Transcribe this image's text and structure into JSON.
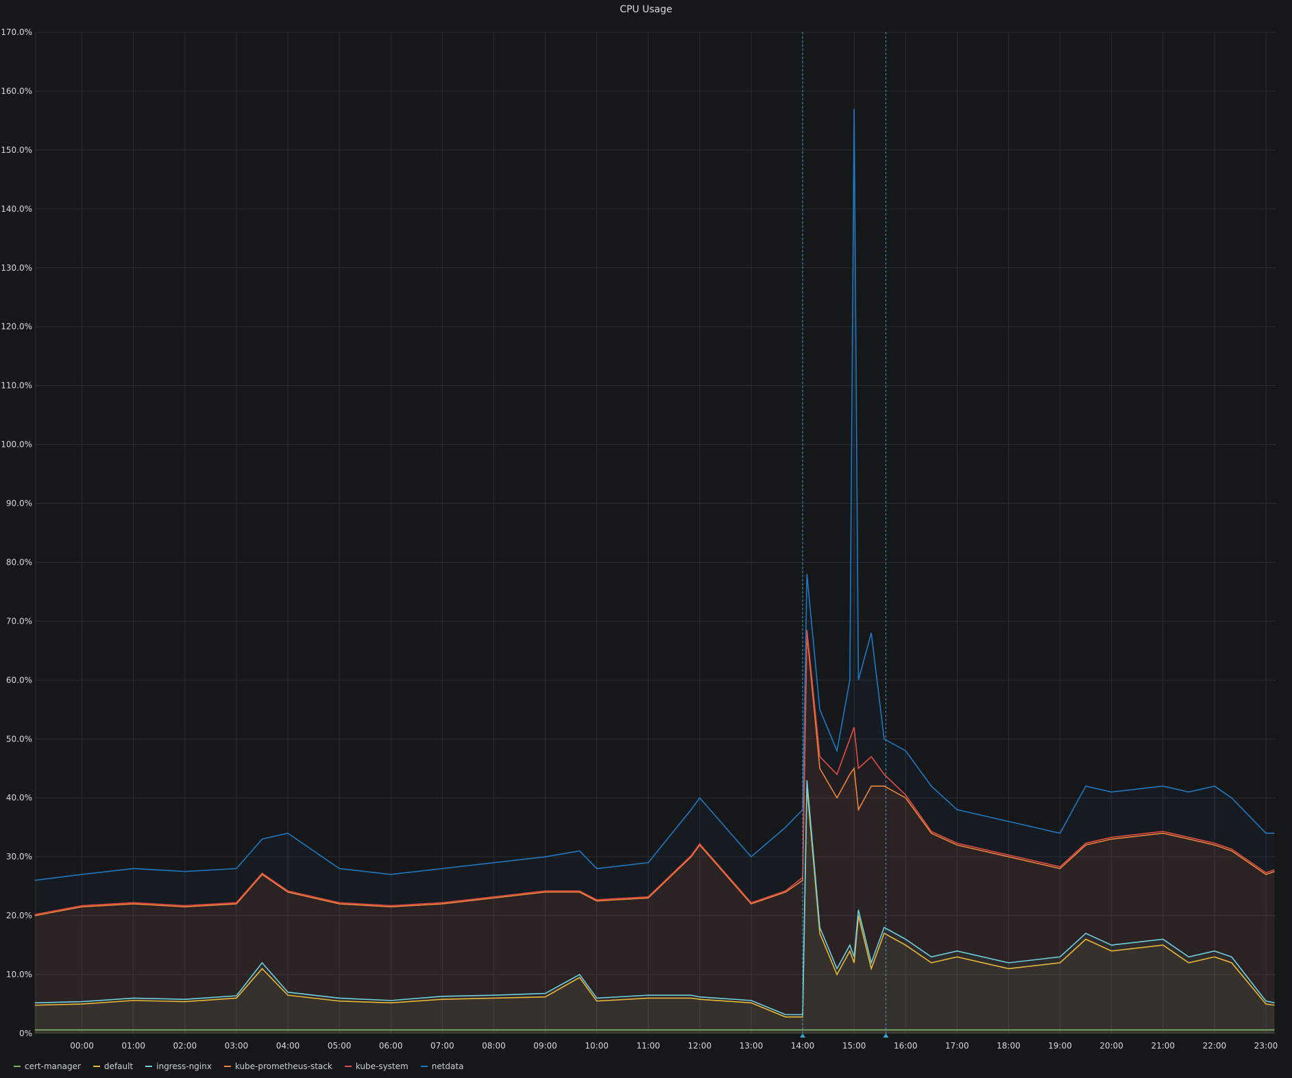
{
  "panel": {
    "title": "CPU Usage"
  },
  "legend": [
    {
      "label": "cert-manager",
      "color": "#7eb26d"
    },
    {
      "label": "default",
      "color": "#eab839"
    },
    {
      "label": "ingress-nginx",
      "color": "#6ed0e0"
    },
    {
      "label": "kube-prometheus-stack",
      "color": "#ef843c"
    },
    {
      "label": "kube-system",
      "color": "#e24d42"
    },
    {
      "label": "netdata",
      "color": "#1f78c1"
    }
  ],
  "chart_data": {
    "type": "area",
    "title": "CPU Usage",
    "stacked": true,
    "xlabel": "",
    "ylabel": "",
    "x_ticks": [
      "00:00",
      "01:00",
      "02:00",
      "03:00",
      "04:00",
      "05:00",
      "06:00",
      "07:00",
      "08:00",
      "09:00",
      "10:00",
      "11:00",
      "12:00",
      "13:00",
      "14:00",
      "15:00",
      "16:00",
      "17:00",
      "18:00",
      "19:00",
      "20:00",
      "21:00",
      "22:00",
      "23:00"
    ],
    "x_range_hours": [
      -0.9,
      23.2
    ],
    "y_ticks": [
      "0%",
      "10.0%",
      "20.0%",
      "30.0%",
      "40.0%",
      "50.0%",
      "60.0%",
      "70.0%",
      "80.0%",
      "90.0%",
      "100.0%",
      "110.0%",
      "120.0%",
      "130.0%",
      "140.0%",
      "150.0%",
      "160.0%",
      "170.0%"
    ],
    "ylim": [
      0,
      170
    ],
    "grid": true,
    "legend_position": "bottom-left",
    "annotations": [
      {
        "x": "14:00"
      },
      {
        "x": "15:37"
      }
    ],
    "x": [
      "-0:55",
      "0:00",
      "1:00",
      "2:00",
      "3:00",
      "3:30",
      "4:00",
      "5:00",
      "6:00",
      "7:00",
      "8:00",
      "9:00",
      "9:40",
      "10:00",
      "11:00",
      "11:50",
      "12:00",
      "13:00",
      "13:40",
      "14:00",
      "14:05",
      "14:20",
      "14:40",
      "14:55",
      "15:00",
      "15:05",
      "15:20",
      "15:35",
      "16:00",
      "16:30",
      "17:00",
      "18:00",
      "19:00",
      "19:30",
      "20:00",
      "21:00",
      "21:30",
      "22:00",
      "22:20",
      "23:00",
      "23:10"
    ],
    "series": [
      {
        "name": "cert-manager",
        "values": [
          0.6,
          0.6,
          0.6,
          0.6,
          0.6,
          0.6,
          0.6,
          0.6,
          0.6,
          0.6,
          0.6,
          0.6,
          0.6,
          0.6,
          0.6,
          0.6,
          0.6,
          0.6,
          0.6,
          0.6,
          0.6,
          0.6,
          0.6,
          0.6,
          0.6,
          0.6,
          0.6,
          0.6,
          0.6,
          0.6,
          0.6,
          0.6,
          0.6,
          0.6,
          0.6,
          0.6,
          0.6,
          0.6,
          0.6,
          0.6,
          0.6
        ]
      },
      {
        "name": "default",
        "values": [
          4.8,
          5.0,
          5.6,
          5.4,
          6.0,
          11.0,
          6.5,
          5.5,
          5.2,
          5.8,
          6.0,
          6.2,
          9.5,
          5.5,
          6.0,
          6.0,
          5.8,
          5.2,
          2.8,
          2.8,
          42.0,
          17.0,
          10.0,
          14.0,
          12.0,
          20.0,
          11.0,
          17.0,
          15.0,
          12.0,
          13.0,
          11.0,
          12.0,
          16.0,
          14.0,
          15.0,
          12.0,
          13.0,
          12.0,
          5.0,
          4.8
        ]
      },
      {
        "name": "ingress-nginx",
        "values": [
          5.2,
          5.4,
          6.0,
          5.8,
          6.4,
          12.0,
          7.0,
          6.0,
          5.6,
          6.3,
          6.5,
          6.8,
          10.0,
          6.0,
          6.5,
          6.5,
          6.2,
          5.6,
          3.2,
          3.2,
          43.0,
          18.0,
          11.0,
          15.0,
          13.0,
          21.0,
          12.0,
          18.0,
          16.0,
          13.0,
          14.0,
          12.0,
          13.0,
          17.0,
          15.0,
          16.0,
          13.0,
          14.0,
          13.0,
          5.5,
          5.2
        ]
      },
      {
        "name": "kube-prometheus-stack",
        "values": [
          20.0,
          21.5,
          22.0,
          21.5,
          22.0,
          27.0,
          24.0,
          22.0,
          21.5,
          22.0,
          23.0,
          24.0,
          24.0,
          22.5,
          23.0,
          30.0,
          32.0,
          22.0,
          24.0,
          26.0,
          68.0,
          45.0,
          40.0,
          44.0,
          45.0,
          38.0,
          42.0,
          42.0,
          40.0,
          34.0,
          32.0,
          30.0,
          28.0,
          32.0,
          33.0,
          34.0,
          33.0,
          32.0,
          31.0,
          27.0,
          27.5
        ]
      },
      {
        "name": "kube-system",
        "values": [
          20.2,
          21.7,
          22.2,
          21.7,
          22.2,
          27.2,
          24.2,
          22.2,
          21.7,
          22.2,
          23.2,
          24.2,
          24.2,
          22.7,
          23.2,
          30.2,
          32.2,
          22.2,
          24.2,
          26.5,
          68.5,
          47.0,
          44.0,
          50.0,
          52.0,
          45.0,
          47.0,
          44.0,
          40.5,
          34.3,
          32.3,
          30.3,
          28.3,
          32.3,
          33.3,
          34.3,
          33.3,
          32.3,
          31.3,
          27.3,
          27.8
        ]
      },
      {
        "name": "netdata",
        "values": [
          26.0,
          27.0,
          28.0,
          27.5,
          28.0,
          33.0,
          34.0,
          28.0,
          27.0,
          28.0,
          29.0,
          30.0,
          31.0,
          28.0,
          29.0,
          38.0,
          40.0,
          30.0,
          35.0,
          38.0,
          78.0,
          55.0,
          48.0,
          60.0,
          157.0,
          60.0,
          68.0,
          50.0,
          48.0,
          42.0,
          38.0,
          36.0,
          34.0,
          42.0,
          41.0,
          42.0,
          41.0,
          42.0,
          40.0,
          34.0,
          34.0
        ]
      }
    ]
  }
}
